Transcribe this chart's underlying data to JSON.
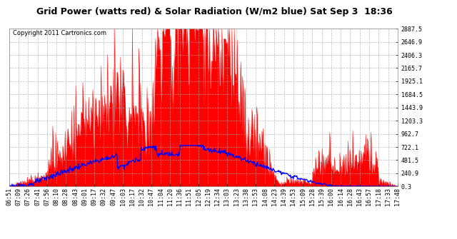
{
  "title": "Grid Power (watts red) & Solar Radiation (W/m2 blue) Sat Sep 3  18:36",
  "copyright": "Copyright 2011 Cartronics.com",
  "bg_color": "#ffffff",
  "plot_bg_color": "#ffffff",
  "grid_color": "#aaaaaa",
  "title_color": "#000000",
  "copyright_color": "#000000",
  "red_color": "#ff0000",
  "blue_color": "#0000ff",
  "yticks": [
    0.3,
    240.9,
    481.5,
    722.1,
    962.7,
    1203.3,
    1443.9,
    1684.5,
    1925.1,
    2165.7,
    2406.3,
    2646.9,
    2887.5
  ],
  "ymin": 0.3,
  "ymax": 2887.5,
  "xtick_labels": [
    "06:51",
    "07:09",
    "07:26",
    "07:41",
    "07:56",
    "08:10",
    "08:28",
    "08:43",
    "09:01",
    "09:17",
    "09:32",
    "09:47",
    "10:03",
    "10:17",
    "10:32",
    "10:47",
    "11:04",
    "11:20",
    "11:36",
    "11:51",
    "12:05",
    "12:19",
    "12:34",
    "13:03",
    "13:23",
    "13:38",
    "13:53",
    "14:08",
    "14:23",
    "14:39",
    "14:53",
    "15:09",
    "15:28",
    "15:39",
    "16:00",
    "16:14",
    "16:28",
    "16:43",
    "16:57",
    "17:18",
    "17:33",
    "17:48"
  ]
}
